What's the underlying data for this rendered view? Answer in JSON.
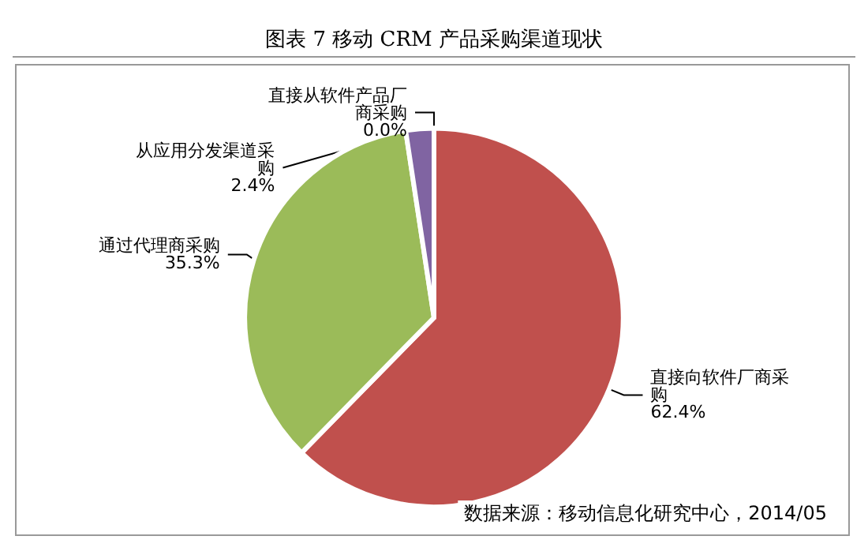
{
  "chart_data": {
    "type": "pie",
    "title": "图表 7 移动 CRM 产品采购渠道现状",
    "categories": [
      "直接从软件产品厂商采购",
      "直接向软件厂商采购",
      "通过代理商采购",
      "从应用分发渠道采购"
    ],
    "values": [
      0.0,
      62.4,
      35.3,
      2.4
    ],
    "colors": [
      "#4f81bd",
      "#c0504d",
      "#9bbb59",
      "#8064a2"
    ],
    "value_labels": [
      "0.0%",
      "62.4%",
      "35.3%",
      "2.4%"
    ],
    "annotations": [
      "数据来源：移动信息化研究中心，2014/05"
    ]
  }
}
